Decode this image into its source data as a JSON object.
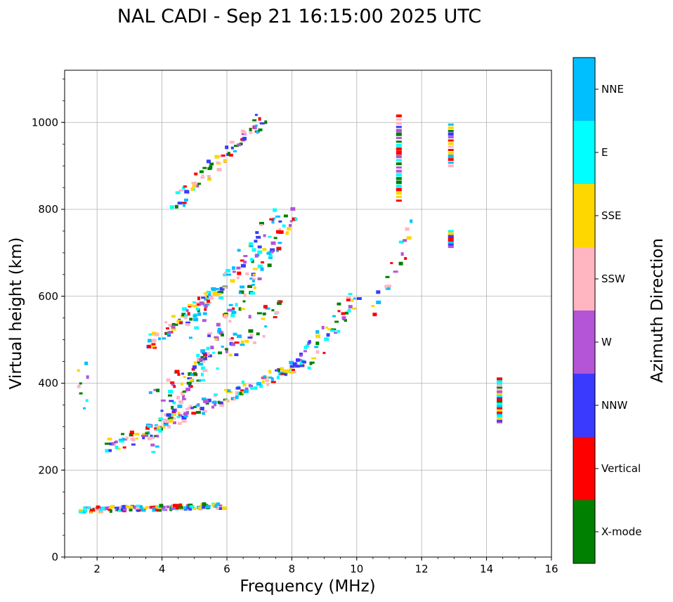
{
  "chart_data": {
    "type": "scatter",
    "title": "NAL CADI - Sep 21 16:15:00 2025 UTC",
    "xlabel": "Frequency (MHz)",
    "ylabel": "Virtual height (km)",
    "xlim": [
      1,
      16
    ],
    "ylim": [
      0,
      1120
    ],
    "xticks": [
      2,
      4,
      6,
      8,
      10,
      12,
      14,
      16
    ],
    "yticks": [
      0,
      200,
      400,
      600,
      800,
      1000
    ],
    "x_tick_labels": [
      "2",
      "4",
      "6",
      "8",
      "10",
      "12",
      "14",
      "16"
    ],
    "y_tick_labels": [
      "0",
      "200",
      "400",
      "600",
      "800",
      "1000"
    ],
    "grid": true,
    "colorbar": {
      "label": "Azimuth Direction",
      "categories": [
        "X-mode",
        "Vertical",
        "NNW",
        "W",
        "SSW",
        "SSE",
        "E",
        "NNE"
      ],
      "colors": [
        "#008000",
        "#ff0000",
        "#3a3aff",
        "#b355d6",
        "#ffb6c1",
        "#ffd700",
        "#00ffff",
        "#00bfff"
      ]
    },
    "segments": [
      {
        "name": "E-layer 1st hop",
        "from": [
          1.5,
          108
        ],
        "to": [
          5.8,
          117
        ],
        "jitter": 6,
        "count": 130
      },
      {
        "name": "F-layer 1st hop",
        "from": [
          2.3,
          250
        ],
        "to": [
          8.4,
          450
        ],
        "jitter": 14,
        "count": 170
      },
      {
        "name": "F-layer 1st hop upper",
        "from": [
          8.3,
          440
        ],
        "to": [
          10.0,
          600
        ],
        "jitter": 25,
        "count": 45
      },
      {
        "name": "F-layer 2nd hop",
        "from": [
          3.6,
          255
        ],
        "to": [
          8.0,
          790
        ],
        "jitter": 18,
        "count": 140
      },
      {
        "name": "F-layer 2nd hop spread",
        "from": [
          4.8,
          520
        ],
        "to": [
          7.5,
          780
        ],
        "jitter": 20,
        "count": 60
      },
      {
        "name": "F-layer 3rd hop",
        "from": [
          4.4,
          810
        ],
        "to": [
          7.1,
          1010
        ],
        "jitter": 14,
        "count": 70
      },
      {
        "name": "Spread oblique",
        "from": [
          3.6,
          490
        ],
        "to": [
          5.8,
          620
        ],
        "jitter": 14,
        "count": 70
      },
      {
        "name": "Spread mid",
        "from": [
          3.8,
          360
        ],
        "to": [
          7.8,
          580
        ],
        "jitter": 30,
        "count": 70
      },
      {
        "name": "Column 11.3 MHz",
        "from": [
          11.3,
          820
        ],
        "to": [
          11.3,
          1015
        ],
        "jitter": 0,
        "count": 24
      },
      {
        "name": "Column 12.9 MHz upper",
        "from": [
          12.9,
          900
        ],
        "to": [
          12.9,
          995
        ],
        "jitter": 0,
        "count": 14
      },
      {
        "name": "Column 12.9 MHz lower",
        "from": [
          12.9,
          715
        ],
        "to": [
          12.9,
          750
        ],
        "jitter": 0,
        "count": 8
      },
      {
        "name": "Column 14.4 MHz",
        "from": [
          14.4,
          310
        ],
        "to": [
          14.4,
          410
        ],
        "jitter": 0,
        "count": 22
      },
      {
        "name": "Oblique 10-12 MHz",
        "from": [
          10.5,
          570
        ],
        "to": [
          11.8,
          760
        ],
        "jitter": 15,
        "count": 18
      },
      {
        "name": "Low 1.5 MHz",
        "from": [
          1.5,
          345
        ],
        "to": [
          1.6,
          445
        ],
        "jitter": 5,
        "count": 8
      }
    ]
  }
}
